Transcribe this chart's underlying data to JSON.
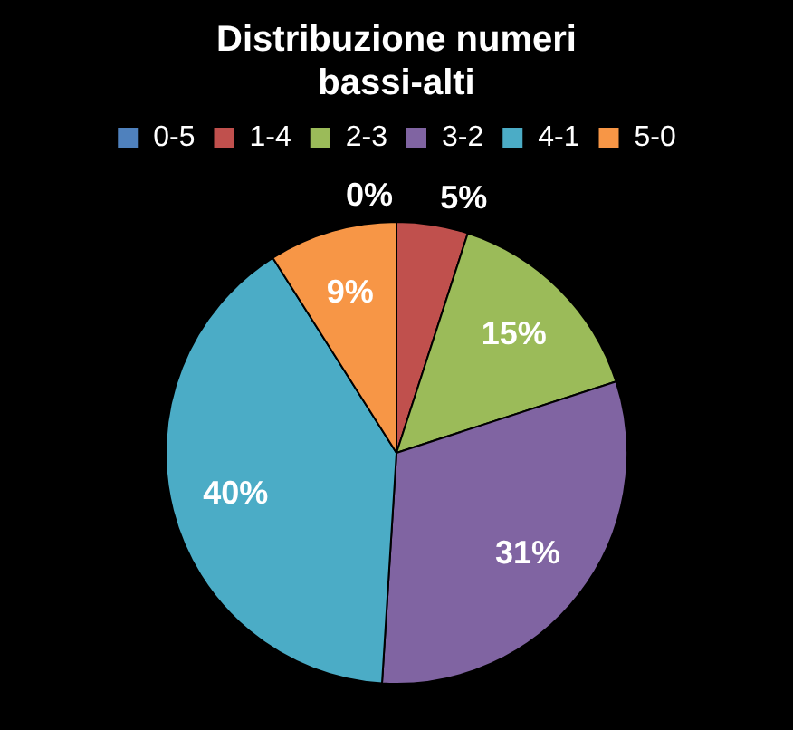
{
  "chart_data": {
    "type": "pie",
    "title": "Distribuzione numeri bassi-alti",
    "categories": [
      "0-5",
      "1-4",
      "2-3",
      "3-2",
      "4-1",
      "5-0"
    ],
    "values": [
      0,
      5,
      15,
      31,
      40,
      9
    ],
    "value_labels": [
      "0%",
      "5%",
      "15%",
      "31%",
      "40%",
      "9%"
    ],
    "colors": [
      "#4f81bd",
      "#c0504d",
      "#9bbb59",
      "#8064a2",
      "#4bacc6",
      "#f79646"
    ],
    "legend": "top"
  }
}
